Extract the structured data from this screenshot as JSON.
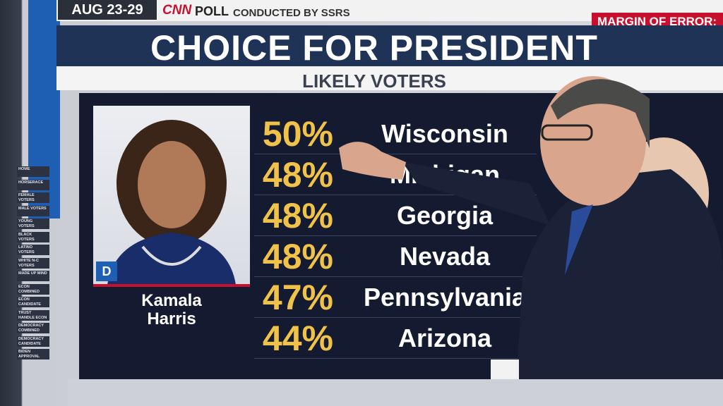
{
  "header": {
    "date": "AUG 23-29",
    "network": "CNN",
    "poll": "POLL",
    "conducted_by": "CONDUCTED BY SSRS",
    "margin": "MARGIN OF ERROR:"
  },
  "title": "CHOICE FOR PRESIDENT",
  "subtitle": "LIKELY VOTERS",
  "candidate": {
    "party": "D",
    "name": "Kamala\nHarris"
  },
  "table": {
    "rows": [
      [
        "50%",
        "Wisconsin"
      ],
      [
        "48%",
        "Michigan"
      ],
      [
        "48%",
        "Georgia"
      ],
      [
        "48%",
        "Nevada"
      ],
      [
        "47%",
        "Pennsylvania"
      ],
      [
        "44%",
        "Arizona"
      ]
    ]
  },
  "menu": [
    "HOME",
    "HORSERACE",
    "FEMALE VOTERS",
    "MALE VOTERS",
    "YOUNG VOTERS",
    "BLACK VOTERS",
    "LATINO VOTERS",
    "WHITE N-C VOTERS",
    "MADE UP MIND",
    "ECON COMBINED",
    "ECON CANDIDATE",
    "TRUST HANDLE ECON",
    "DEMOCRACY COMBINED",
    "DEMOCRACY CANDIDATE",
    "BIDEN APPROVAL"
  ]
}
